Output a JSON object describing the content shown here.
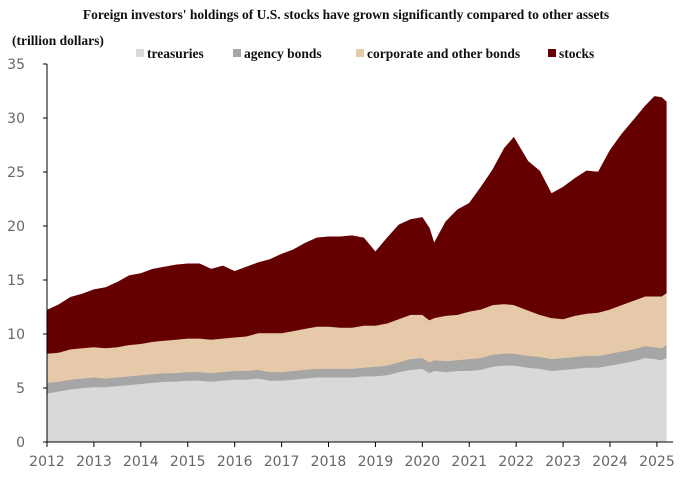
{
  "chart_data": {
    "type": "area",
    "stacked": true,
    "title": "Foreign investors' holdings of U.S. stocks have grown significantly compared to other assets",
    "ylabel": "(trillion dollars)",
    "xlabel": "",
    "ylim": [
      0,
      35
    ],
    "yticks": [
      0,
      5,
      10,
      15,
      20,
      25,
      30,
      35
    ],
    "xticks": [
      "2012",
      "2013",
      "2014",
      "2015",
      "2016",
      "2017",
      "2018",
      "2019",
      "2020",
      "2021",
      "2022",
      "2023",
      "2024",
      "2025"
    ],
    "xlim": [
      2012.0,
      2025.3
    ],
    "legend_position": "top",
    "x": [
      2012.0,
      2012.25,
      2012.5,
      2012.75,
      2013.0,
      2013.25,
      2013.5,
      2013.75,
      2014.0,
      2014.25,
      2014.5,
      2014.75,
      2015.0,
      2015.25,
      2015.5,
      2015.75,
      2016.0,
      2016.25,
      2016.5,
      2016.75,
      2017.0,
      2017.25,
      2017.5,
      2017.75,
      2018.0,
      2018.25,
      2018.5,
      2018.75,
      2019.0,
      2019.25,
      2019.5,
      2019.75,
      2020.0,
      2020.15,
      2020.25,
      2020.5,
      2020.75,
      2021.0,
      2021.25,
      2021.5,
      2021.75,
      2021.95,
      2022.25,
      2022.5,
      2022.75,
      2023.0,
      2023.25,
      2023.5,
      2023.75,
      2024.0,
      2024.25,
      2024.5,
      2024.75,
      2024.95,
      2025.1,
      2025.2
    ],
    "series": [
      {
        "name": "treasuries",
        "color": "#d9d9d9",
        "values": [
          4.5,
          4.7,
          4.9,
          5.0,
          5.1,
          5.1,
          5.2,
          5.3,
          5.4,
          5.5,
          5.6,
          5.6,
          5.7,
          5.7,
          5.6,
          5.7,
          5.8,
          5.8,
          5.9,
          5.7,
          5.7,
          5.8,
          5.9,
          6.0,
          6.0,
          6.0,
          6.0,
          6.1,
          6.1,
          6.2,
          6.5,
          6.7,
          6.8,
          6.4,
          6.6,
          6.5,
          6.6,
          6.6,
          6.7,
          7.0,
          7.1,
          7.1,
          6.9,
          6.8,
          6.6,
          6.7,
          6.8,
          6.9,
          6.9,
          7.1,
          7.3,
          7.5,
          7.8,
          7.7,
          7.6,
          7.8
        ]
      },
      {
        "name": "agency bonds",
        "color": "#a6a6a6",
        "values": [
          1.0,
          0.9,
          0.9,
          0.9,
          0.9,
          0.8,
          0.8,
          0.8,
          0.8,
          0.8,
          0.8,
          0.8,
          0.8,
          0.8,
          0.8,
          0.8,
          0.8,
          0.8,
          0.8,
          0.8,
          0.8,
          0.8,
          0.8,
          0.8,
          0.8,
          0.8,
          0.8,
          0.8,
          0.9,
          0.9,
          0.9,
          1.0,
          1.0,
          1.0,
          1.0,
          1.0,
          1.0,
          1.1,
          1.1,
          1.1,
          1.1,
          1.1,
          1.1,
          1.1,
          1.1,
          1.1,
          1.1,
          1.1,
          1.1,
          1.1,
          1.1,
          1.1,
          1.1,
          1.1,
          1.1,
          1.2
        ]
      },
      {
        "name": "corporate and other bonds",
        "color": "#e6c9a8",
        "values": [
          2.7,
          2.7,
          2.8,
          2.8,
          2.8,
          2.8,
          2.8,
          2.9,
          2.9,
          3.0,
          3.0,
          3.1,
          3.1,
          3.1,
          3.1,
          3.1,
          3.1,
          3.2,
          3.4,
          3.6,
          3.6,
          3.7,
          3.8,
          3.9,
          3.9,
          3.8,
          3.8,
          3.9,
          3.8,
          3.9,
          4.0,
          4.1,
          4.0,
          3.9,
          3.9,
          4.2,
          4.2,
          4.4,
          4.5,
          4.6,
          4.6,
          4.5,
          4.2,
          3.9,
          3.8,
          3.6,
          3.8,
          3.9,
          4.0,
          4.1,
          4.3,
          4.5,
          4.6,
          4.7,
          4.8,
          4.8
        ]
      },
      {
        "name": "stocks",
        "color": "#650000",
        "values": [
          4.0,
          4.4,
          4.8,
          5.0,
          5.3,
          5.6,
          6.0,
          6.4,
          6.5,
          6.7,
          6.8,
          6.9,
          6.9,
          6.9,
          6.5,
          6.7,
          6.1,
          6.4,
          6.5,
          6.8,
          7.3,
          7.5,
          7.9,
          8.2,
          8.3,
          8.4,
          8.5,
          8.1,
          6.8,
          7.9,
          8.7,
          8.8,
          9.0,
          8.5,
          6.9,
          8.7,
          9.7,
          10.0,
          11.3,
          12.5,
          14.4,
          15.5,
          13.8,
          13.3,
          11.5,
          12.2,
          12.7,
          13.2,
          13.0,
          14.7,
          15.8,
          16.7,
          17.6,
          18.5,
          18.4,
          17.7
        ]
      }
    ]
  }
}
